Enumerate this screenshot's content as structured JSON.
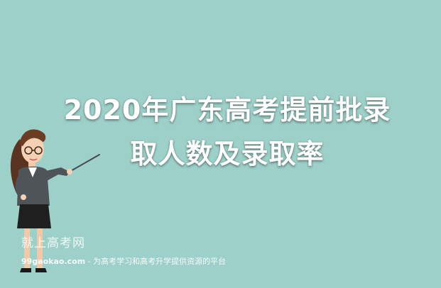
{
  "banner": {
    "background_color": "#9dd0c8",
    "title_line_1": "2020年广东高考提前批录",
    "title_line_2": "取人数及录取率"
  },
  "watermark": {
    "site_name": "就上高考网",
    "domain": "99gaokao.com",
    "slogan": " - 为高考学习和高考升学提供资源的平台"
  },
  "illustration": {
    "subject": "teacher-pointing-icon"
  }
}
